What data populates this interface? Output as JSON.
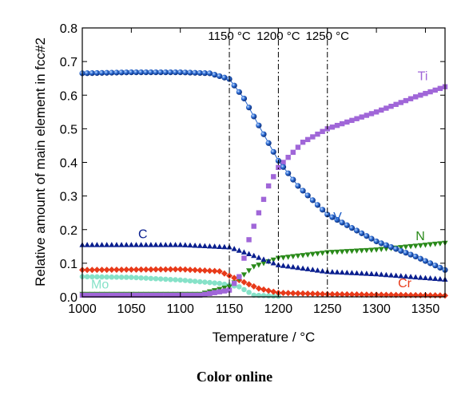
{
  "chart_data": {
    "type": "scatter",
    "xlabel": "Temperature / °C",
    "ylabel": "Relative amount of main element in fcc#2",
    "xlim": [
      1000,
      1370
    ],
    "ylim": [
      0,
      0.8
    ],
    "x_ticks": [
      "1000",
      "1050",
      "1100",
      "1150",
      "1200",
      "1250",
      "1300",
      "1350"
    ],
    "y_ticks": [
      "0.0",
      "0.1",
      "0.2",
      "0.3",
      "0.4",
      "0.5",
      "0.6",
      "0.7",
      "0.8"
    ],
    "grid": false,
    "legend": "none",
    "vertical_lines": [
      {
        "x": 1150,
        "label": "1150 °C"
      },
      {
        "x": 1200,
        "label": "1200 °C"
      },
      {
        "x": 1250,
        "label": "1250 °C"
      }
    ],
    "series": [
      {
        "name": "V",
        "color": "#1f5fc8",
        "marker": "sphere",
        "points": [
          [
            1000,
            0.665
          ],
          [
            1050,
            0.668
          ],
          [
            1100,
            0.668
          ],
          [
            1130,
            0.665
          ],
          [
            1150,
            0.648
          ],
          [
            1165,
            0.59
          ],
          [
            1180,
            0.51
          ],
          [
            1200,
            0.405
          ],
          [
            1220,
            0.33
          ],
          [
            1250,
            0.245
          ],
          [
            1300,
            0.165
          ],
          [
            1340,
            0.12
          ],
          [
            1370,
            0.08
          ]
        ]
      },
      {
        "name": "Ti",
        "color": "#a066d8",
        "marker": "square",
        "points": [
          [
            1000,
            0.005
          ],
          [
            1120,
            0.005
          ],
          [
            1150,
            0.02
          ],
          [
            1160,
            0.06
          ],
          [
            1170,
            0.17
          ],
          [
            1180,
            0.25
          ],
          [
            1190,
            0.33
          ],
          [
            1200,
            0.385
          ],
          [
            1225,
            0.46
          ],
          [
            1250,
            0.5
          ],
          [
            1300,
            0.55
          ],
          [
            1340,
            0.595
          ],
          [
            1370,
            0.625
          ]
        ]
      },
      {
        "name": "C",
        "color": "#0a1f8f",
        "marker": "triangle-up",
        "points": [
          [
            1000,
            0.155
          ],
          [
            1100,
            0.155
          ],
          [
            1150,
            0.148
          ],
          [
            1170,
            0.128
          ],
          [
            1200,
            0.095
          ],
          [
            1250,
            0.075
          ],
          [
            1300,
            0.068
          ],
          [
            1370,
            0.052
          ]
        ]
      },
      {
        "name": "N",
        "color": "#2a8a1a",
        "marker": "triangle-down",
        "points": [
          [
            1000,
            0.008
          ],
          [
            1120,
            0.008
          ],
          [
            1150,
            0.03
          ],
          [
            1175,
            0.09
          ],
          [
            1200,
            0.115
          ],
          [
            1250,
            0.132
          ],
          [
            1300,
            0.14
          ],
          [
            1370,
            0.16
          ]
        ]
      },
      {
        "name": "Cr",
        "color": "#e83a1a",
        "marker": "diamond",
        "points": [
          [
            1000,
            0.08
          ],
          [
            1100,
            0.082
          ],
          [
            1140,
            0.076
          ],
          [
            1160,
            0.05
          ],
          [
            1180,
            0.025
          ],
          [
            1200,
            0.012
          ],
          [
            1250,
            0.008
          ],
          [
            1370,
            0.004
          ]
        ]
      },
      {
        "name": "Mo",
        "color": "#86e2c8",
        "marker": "circle",
        "points": [
          [
            1000,
            0.06
          ],
          [
            1050,
            0.058
          ],
          [
            1100,
            0.05
          ],
          [
            1140,
            0.04
          ],
          [
            1160,
            0.03
          ],
          [
            1175,
            0.005
          ],
          [
            1200,
            0.002
          ]
        ]
      }
    ]
  },
  "caption": "Color online"
}
